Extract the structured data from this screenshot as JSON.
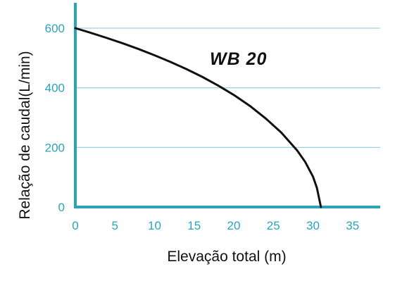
{
  "chart_data": {
    "type": "line",
    "xlabel": "Elevação total (m)",
    "ylabel": "Relação de caudal(L/min)",
    "xlim": [
      0,
      38
    ],
    "ylim": [
      0,
      680
    ],
    "xticks": [
      "0",
      "5",
      "10",
      "15",
      "20",
      "25",
      "30",
      "35"
    ],
    "yticks": [
      "0",
      "200",
      "400",
      "600"
    ],
    "grid": "horizontal",
    "series": [
      {
        "name": "WB 20",
        "x": [
          0,
          2,
          4,
          6,
          8,
          10,
          12,
          14,
          16,
          18,
          20,
          22,
          24,
          26,
          28,
          29,
          30,
          30.5,
          31
        ],
        "values": [
          600,
          584,
          567,
          549,
          530,
          509,
          487,
          463,
          437,
          408,
          376,
          340,
          298,
          250,
          190,
          152,
          102,
          64,
          0
        ]
      }
    ]
  },
  "colors": {
    "axis": "#2aa5b8",
    "grid": "#9fd3dc",
    "line": "#111111"
  }
}
